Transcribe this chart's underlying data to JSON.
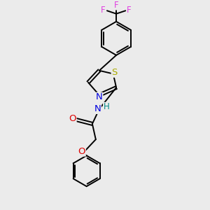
{
  "bg_color": "#ebebeb",
  "bond_color": "#000000",
  "atom_colors": {
    "F": "#e040e0",
    "S": "#aaaa00",
    "N": "#0000dd",
    "O": "#dd0000",
    "H": "#008888",
    "C": "#000000"
  },
  "font_size": 8.5,
  "line_width": 1.4
}
